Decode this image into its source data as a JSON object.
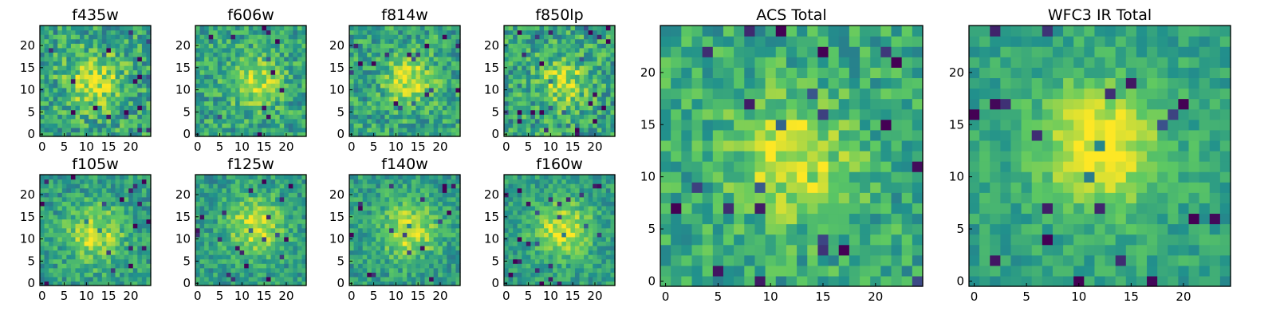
{
  "figure": {
    "description_type": "grid of galaxy cutout images",
    "colormap": "viridis",
    "colormap_stops": [
      "#440154",
      "#3b528b",
      "#21918c",
      "#5ec962",
      "#fde725"
    ]
  },
  "chart_data": [
    {
      "type": "heatmap",
      "title": "f435w",
      "grid": [
        25,
        25
      ],
      "xlim": [
        0,
        24
      ],
      "ylim": [
        0,
        24
      ],
      "xticks": [
        0,
        5,
        10,
        15,
        20
      ],
      "yticks": [
        0,
        5,
        10,
        15,
        20
      ],
      "structure": {
        "center": [
          12,
          12
        ],
        "peak": 0.72,
        "sigma": 4.5,
        "noise": 0.22,
        "base": 0.58
      }
    },
    {
      "type": "heatmap",
      "title": "f606w",
      "grid": [
        25,
        25
      ],
      "xlim": [
        0,
        24
      ],
      "ylim": [
        0,
        24
      ],
      "xticks": [
        0,
        5,
        10,
        15,
        20
      ],
      "yticks": [
        0,
        5,
        10,
        15,
        20
      ],
      "structure": {
        "center": [
          13,
          12
        ],
        "peak": 0.78,
        "sigma": 4.0,
        "noise": 0.2,
        "base": 0.58
      }
    },
    {
      "type": "heatmap",
      "title": "f814w",
      "grid": [
        25,
        25
      ],
      "xlim": [
        0,
        24
      ],
      "ylim": [
        0,
        24
      ],
      "xticks": [
        0,
        5,
        10,
        15,
        20
      ],
      "yticks": [
        0,
        5,
        10,
        15,
        20
      ],
      "structure": {
        "center": [
          13,
          12
        ],
        "peak": 0.8,
        "sigma": 3.8,
        "noise": 0.2,
        "base": 0.58
      }
    },
    {
      "type": "heatmap",
      "title": "f850lp",
      "grid": [
        25,
        25
      ],
      "xlim": [
        0,
        24
      ],
      "ylim": [
        0,
        24
      ],
      "xticks": [
        0,
        5,
        10,
        15,
        20
      ],
      "yticks": [
        0,
        5,
        10,
        15,
        20
      ],
      "structure": {
        "center": [
          13,
          12
        ],
        "peak": 0.7,
        "sigma": 4.0,
        "noise": 0.22,
        "base": 0.58
      }
    },
    {
      "type": "heatmap",
      "title": "f105w",
      "grid": [
        25,
        25
      ],
      "xlim": [
        0,
        24
      ],
      "ylim": [
        0,
        24
      ],
      "xticks": [
        0,
        5,
        10,
        15,
        20
      ],
      "yticks": [
        0,
        5,
        10,
        15,
        20
      ],
      "structure": {
        "center": [
          12,
          11
        ],
        "peak": 0.82,
        "sigma": 4.5,
        "noise": 0.17,
        "base": 0.55
      }
    },
    {
      "type": "heatmap",
      "title": "f125w",
      "grid": [
        25,
        25
      ],
      "xlim": [
        0,
        24
      ],
      "ylim": [
        0,
        24
      ],
      "xticks": [
        0,
        5,
        10,
        15,
        20
      ],
      "yticks": [
        0,
        5,
        10,
        15,
        20
      ],
      "structure": {
        "center": [
          13,
          13
        ],
        "peak": 0.85,
        "sigma": 4.5,
        "noise": 0.16,
        "base": 0.55
      }
    },
    {
      "type": "heatmap",
      "title": "f140w",
      "grid": [
        25,
        25
      ],
      "xlim": [
        0,
        24
      ],
      "ylim": [
        0,
        24
      ],
      "xticks": [
        0,
        5,
        10,
        15,
        20
      ],
      "yticks": [
        0,
        5,
        10,
        15,
        20
      ],
      "structure": {
        "center": [
          13,
          12
        ],
        "peak": 0.85,
        "sigma": 4.5,
        "noise": 0.16,
        "base": 0.55
      }
    },
    {
      "type": "heatmap",
      "title": "f160w",
      "grid": [
        25,
        25
      ],
      "xlim": [
        0,
        24
      ],
      "ylim": [
        0,
        24
      ],
      "xticks": [
        0,
        5,
        10,
        15,
        20
      ],
      "yticks": [
        0,
        5,
        10,
        15,
        20
      ],
      "structure": {
        "center": [
          13,
          12
        ],
        "peak": 0.9,
        "sigma": 4.5,
        "noise": 0.15,
        "base": 0.55
      }
    },
    {
      "type": "heatmap",
      "title": "ACS Total",
      "grid": [
        25,
        25
      ],
      "xlim": [
        0,
        24
      ],
      "ylim": [
        0,
        24
      ],
      "xticks": [
        0,
        5,
        10,
        15,
        20
      ],
      "yticks": [
        0,
        5,
        10,
        15,
        20
      ],
      "structure": {
        "center": [
          12,
          12
        ],
        "peak": 0.82,
        "sigma": 4.0,
        "noise": 0.18,
        "base": 0.6
      }
    },
    {
      "type": "heatmap",
      "title": "WFC3 IR Total",
      "grid": [
        25,
        25
      ],
      "xlim": [
        0,
        24
      ],
      "ylim": [
        0,
        24
      ],
      "xticks": [
        0,
        5,
        10,
        15,
        20
      ],
      "yticks": [
        0,
        5,
        10,
        15,
        20
      ],
      "structure": {
        "center": [
          12,
          13
        ],
        "peak": 0.95,
        "sigma": 4.2,
        "noise": 0.12,
        "base": 0.58
      }
    }
  ]
}
